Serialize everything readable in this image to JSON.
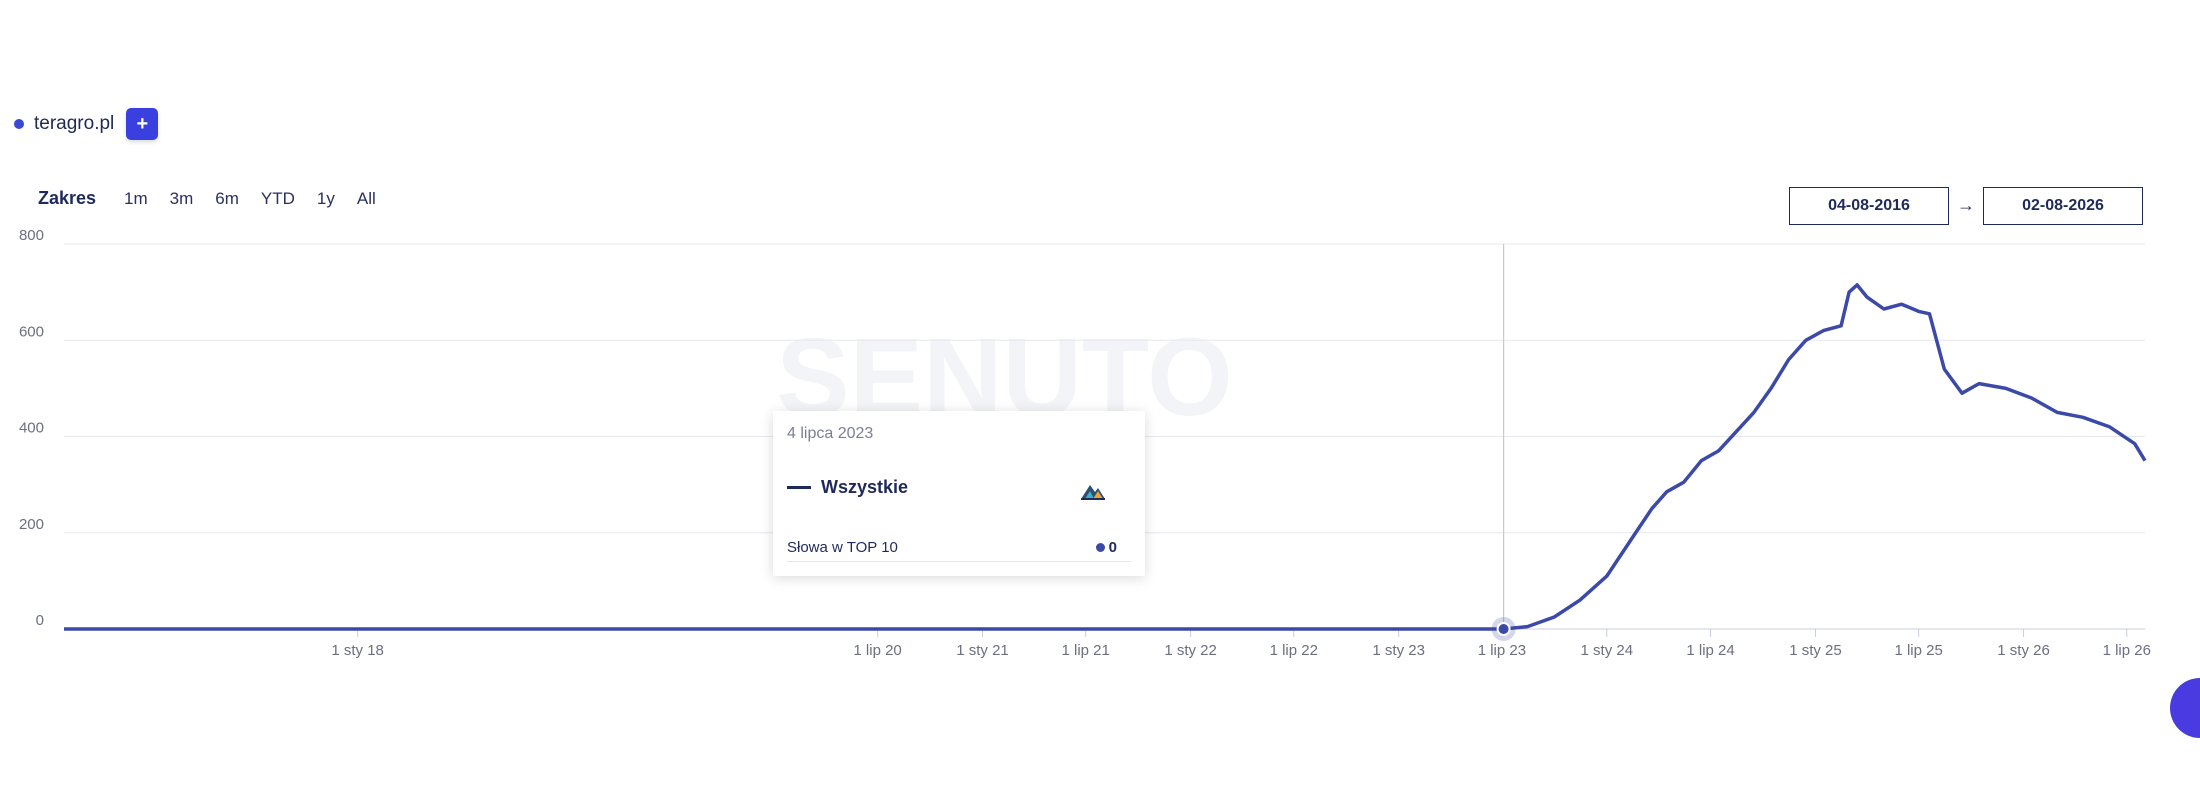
{
  "domains": [
    {
      "label": "teragro.pl",
      "color": "#3949d8"
    }
  ],
  "add_button": {
    "label": "+"
  },
  "range": {
    "label": "Zakres",
    "options": [
      "1m",
      "3m",
      "6m",
      "YTD",
      "1y",
      "All"
    ]
  },
  "date_from": "04-08-2016",
  "date_arrow": "→",
  "date_to": "02-08-2026",
  "watermark": "SENUTO",
  "tooltip": {
    "date": "4 lipca 2023",
    "series_name": "Wszystkie",
    "logo_icon": "mountain-logo-icon",
    "row_label": "Słowa w TOP 10",
    "row_value": "0"
  },
  "chart_data": {
    "type": "line",
    "y_ticks": [
      "0",
      "200",
      "400",
      "600",
      "800"
    ],
    "ylim": [
      0,
      800
    ],
    "x_range": [
      "2016-08-04",
      "2026-08-02"
    ],
    "x_ticks": [
      {
        "label": "1 sty 18",
        "date": "2018-01-01"
      },
      {
        "label": "1 lip 20",
        "date": "2020-07-01"
      },
      {
        "label": "1 sty 21",
        "date": "2021-01-01"
      },
      {
        "label": "1 lip 21",
        "date": "2021-07-01"
      },
      {
        "label": "1 sty 22",
        "date": "2022-01-01"
      },
      {
        "label": "1 lip 22",
        "date": "2022-07-01"
      },
      {
        "label": "1 sty 23",
        "date": "2023-01-01"
      },
      {
        "label": "1 lip 23",
        "date": "2023-07-01"
      },
      {
        "label": "1 sty 24",
        "date": "2024-01-01"
      },
      {
        "label": "1 lip 24",
        "date": "2024-07-01"
      },
      {
        "label": "1 sty 25",
        "date": "2025-01-01"
      },
      {
        "label": "1 lip 25",
        "date": "2025-07-01"
      },
      {
        "label": "1 sty 26",
        "date": "2026-01-01"
      },
      {
        "label": "1 lip 26",
        "date": "2026-07-01"
      }
    ],
    "series": [
      {
        "name": "Wszystkie",
        "color": "#3b4aa8",
        "points": [
          [
            "2016-08-04",
            0
          ],
          [
            "2023-07-04",
            0
          ],
          [
            "2023-08-15",
            5
          ],
          [
            "2023-10-01",
            25
          ],
          [
            "2023-11-15",
            60
          ],
          [
            "2024-01-01",
            110
          ],
          [
            "2024-02-15",
            190
          ],
          [
            "2024-03-20",
            250
          ],
          [
            "2024-04-15",
            285
          ],
          [
            "2024-05-15",
            305
          ],
          [
            "2024-06-15",
            350
          ],
          [
            "2024-07-15",
            370
          ],
          [
            "2024-08-15",
            410
          ],
          [
            "2024-09-15",
            450
          ],
          [
            "2024-10-15",
            500
          ],
          [
            "2024-11-15",
            560
          ],
          [
            "2024-12-15",
            600
          ],
          [
            "2025-01-15",
            620
          ],
          [
            "2025-02-15",
            630
          ],
          [
            "2025-03-01",
            700
          ],
          [
            "2025-03-15",
            715
          ],
          [
            "2025-04-01",
            690
          ],
          [
            "2025-05-01",
            665
          ],
          [
            "2025-06-01",
            675
          ],
          [
            "2025-07-01",
            660
          ],
          [
            "2025-07-20",
            655
          ],
          [
            "2025-08-15",
            540
          ],
          [
            "2025-09-15",
            490
          ],
          [
            "2025-10-15",
            510
          ],
          [
            "2025-12-01",
            500
          ],
          [
            "2026-01-15",
            480
          ],
          [
            "2026-03-01",
            450
          ],
          [
            "2026-04-15",
            440
          ],
          [
            "2026-06-01",
            420
          ],
          [
            "2026-07-15",
            385
          ],
          [
            "2026-08-02",
            350
          ]
        ]
      }
    ],
    "highlight": {
      "date": "2023-07-04",
      "value": 0
    }
  }
}
